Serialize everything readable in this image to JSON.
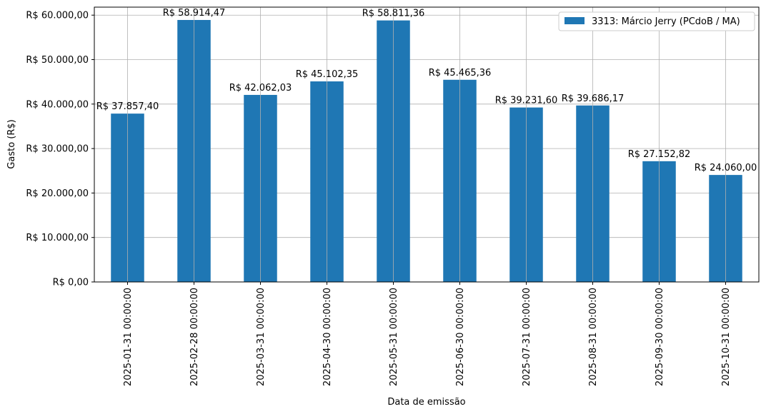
{
  "chart_data": {
    "type": "bar",
    "categories": [
      "2025-01-31 00:00:00",
      "2025-02-28 00:00:00",
      "2025-03-31 00:00:00",
      "2025-04-30 00:00:00",
      "2025-05-31 00:00:00",
      "2025-06-30 00:00:00",
      "2025-07-31 00:00:00",
      "2025-08-31 00:00:00",
      "2025-09-30 00:00:00",
      "2025-10-31 00:00:00"
    ],
    "series": [
      {
        "name": "3313: Márcio Jerry (PCdoB / MA)",
        "color": "#1f77b4",
        "values": [
          37857.4,
          58914.47,
          42062.03,
          45102.35,
          58811.36,
          45465.36,
          39231.6,
          39686.17,
          27152.82,
          24060.0
        ]
      }
    ],
    "data_labels": [
      "R$ 37.857,40",
      "R$ 58.914,47",
      "R$ 42.062,03",
      "R$ 45.102,35",
      "R$ 58.811,36",
      "R$ 45.465,36",
      "R$ 39.231,60",
      "R$ 39.686,17",
      "R$ 27.152,82",
      "R$ 24.060,00"
    ],
    "y_ticks": [
      0,
      10000,
      20000,
      30000,
      40000,
      50000,
      60000
    ],
    "y_tick_labels": [
      "R$ 0,00",
      "R$ 10.000,00",
      "R$ 20.000,00",
      "R$ 30.000,00",
      "R$ 40.000,00",
      "R$ 50.000,00",
      "R$ 60.000,00"
    ],
    "xlabel": "Data de emissão",
    "ylabel": "Gasto (R$)",
    "ylim": [
      0,
      61800
    ],
    "grid": true,
    "legend_position": "top-right"
  }
}
